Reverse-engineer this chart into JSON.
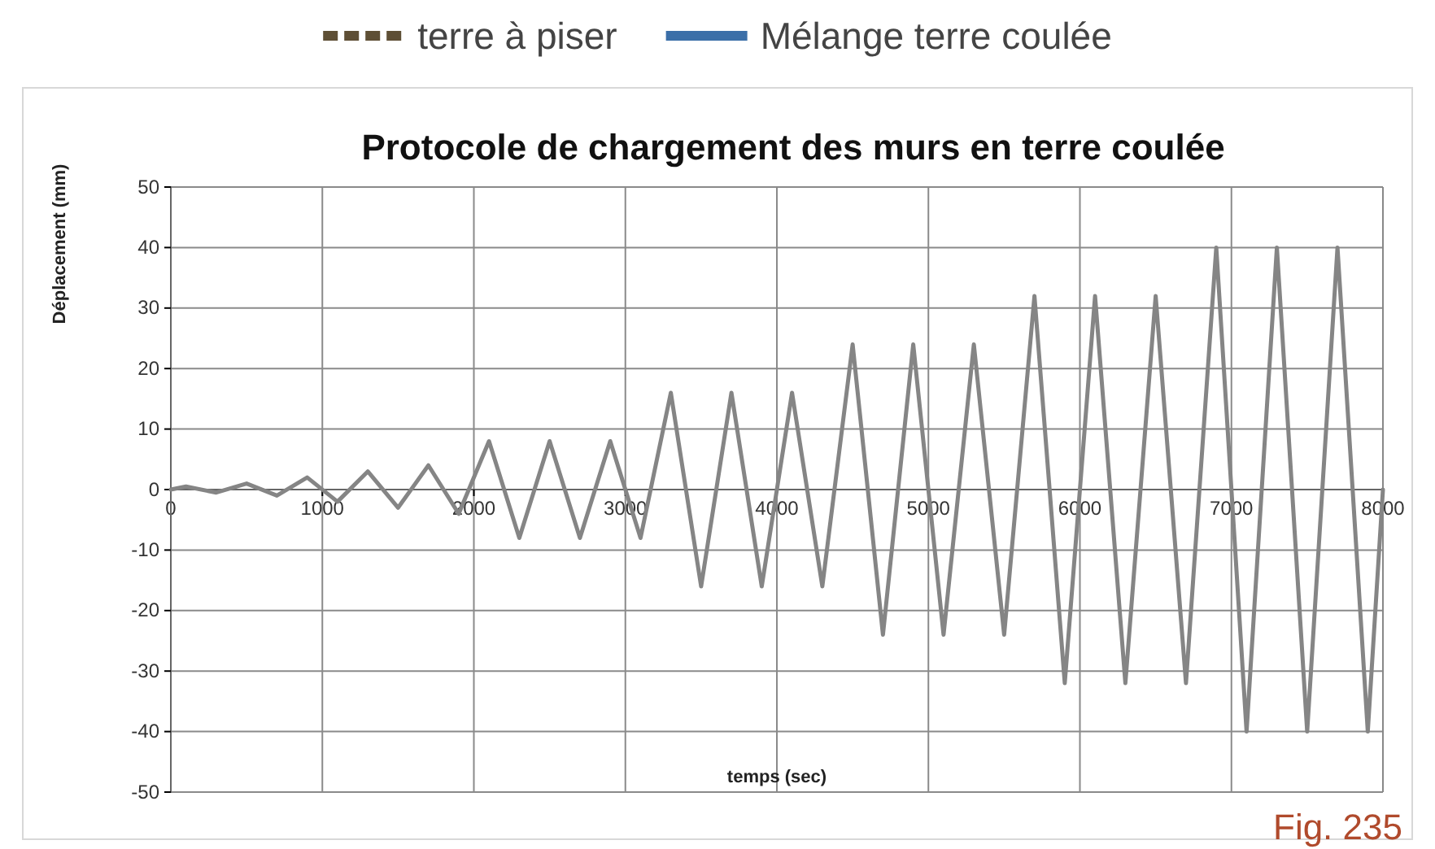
{
  "chart_data": {
    "type": "line",
    "title": "Protocole de chargement des murs en terre coulée",
    "xlabel": "temps (sec)",
    "ylabel": "Déplacement (mm)",
    "annotations": [
      "Fig. 235"
    ],
    "x": [
      0,
      100,
      300,
      500,
      700,
      900,
      1100,
      1300,
      1500,
      1700,
      1900,
      2100,
      2300,
      2500,
      2700,
      2900,
      3100,
      3300,
      3500,
      3700,
      3900,
      4100,
      4300,
      4500,
      4700,
      4900,
      5100,
      5300,
      5500,
      5700,
      5900,
      6100,
      6300,
      6500,
      6700,
      6900,
      7100,
      7300,
      7500,
      7700,
      7900,
      8000
    ],
    "series": [
      {
        "color": "#858585",
        "line_style": "solid",
        "values": [
          0,
          0.5,
          -0.5,
          1,
          -1,
          2,
          -2,
          3,
          -3,
          4,
          -4,
          8,
          -8,
          8,
          -8,
          8,
          -8,
          16,
          -16,
          16,
          -16,
          16,
          -16,
          24,
          -24,
          24,
          -24,
          24,
          -24,
          32,
          -32,
          32,
          -32,
          32,
          -32,
          40,
          -40,
          40,
          -40,
          40,
          -40,
          0
        ]
      },
      {
        "name": "terre à piser",
        "color": "#5e4f35",
        "line_style": "dashed",
        "values": [
          null,
          null,
          null,
          null,
          null,
          null,
          null,
          null,
          null,
          null,
          null,
          null,
          null,
          null,
          null,
          null,
          null,
          null,
          null,
          null,
          null,
          null,
          null,
          null,
          null,
          null,
          null,
          null,
          null,
          null,
          null,
          null,
          null,
          null,
          null,
          null,
          null,
          null,
          null,
          null,
          null,
          null
        ]
      },
      {
        "name": "Mélange terre coulée",
        "color": "#3b6fa8",
        "line_style": "solid",
        "values": [
          null,
          null,
          null,
          null,
          null,
          null,
          null,
          null,
          null,
          null,
          null,
          null,
          null,
          null,
          null,
          null,
          null,
          null,
          null,
          null,
          null,
          null,
          null,
          null,
          null,
          null,
          null,
          null,
          null,
          null,
          null,
          null,
          null,
          null,
          null,
          null,
          null,
          null,
          null,
          null,
          null,
          null
        ]
      }
    ],
    "xlim": [
      0,
      8000
    ],
    "xticks": [
      0,
      1000,
      2000,
      3000,
      4000,
      5000,
      6000,
      7000,
      8000
    ],
    "ylim": [
      -50,
      50
    ],
    "yticks": [
      -50,
      -40,
      -30,
      -20,
      -10,
      0,
      10,
      20,
      30,
      40,
      50
    ],
    "grid": true,
    "legend": "top",
    "marker": "none"
  }
}
